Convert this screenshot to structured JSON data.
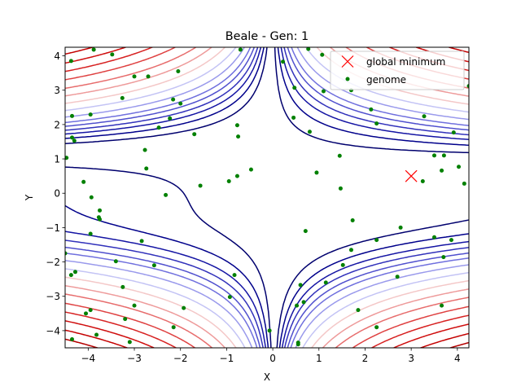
{
  "chart_data": {
    "type": "scatter",
    "title": "Beale - Gen: 1",
    "xlabel": "X",
    "ylabel": "Y",
    "xlim": [
      -4.5,
      4.25
    ],
    "ylim": [
      -4.5,
      4.25
    ],
    "xticks": [
      -4,
      -3,
      -2,
      -1,
      0,
      1,
      2,
      3,
      4
    ],
    "yticks": [
      -4,
      -3,
      -2,
      -1,
      0,
      1,
      2,
      3,
      4
    ],
    "xtick_labels": [
      "−4",
      "−3",
      "−2",
      "−1",
      "0",
      "1",
      "2",
      "3",
      "4"
    ],
    "ytick_labels": [
      "−4",
      "−3",
      "−2",
      "−1",
      "0",
      "1",
      "2",
      "3",
      "4"
    ],
    "grid": false,
    "legend_position": "top-right",
    "contour": {
      "function": "beale",
      "levels": [
        50,
        150,
        300,
        500,
        800,
        1200,
        2000,
        3500,
        6000,
        10000,
        16000,
        26000,
        40000,
        60000,
        90000,
        130000
      ],
      "colors": [
        "#00006e",
        "#00008b",
        "#1515a4",
        "#3232bb",
        "#5050ce",
        "#7070de",
        "#9a9aec",
        "#c4c4f5",
        "#f4c8c8",
        "#ee9b9b",
        "#e76d6d",
        "#df4242",
        "#d72222",
        "#cf0e0e",
        "#c40000",
        "#b40000"
      ]
    },
    "series": [
      {
        "name": "global minimum",
        "marker": "x",
        "color": "#ff0000",
        "points": [
          [
            3,
            0.5
          ]
        ]
      },
      {
        "name": "genome",
        "marker": "dot",
        "color": "#008000",
        "points": [
          [
            -4.47,
            1.03
          ],
          [
            -4.37,
            3.85
          ],
          [
            -4.35,
            2.25
          ],
          [
            -4.35,
            1.62
          ],
          [
            -4.3,
            1.53
          ],
          [
            -4.37,
            -2.38
          ],
          [
            -4.28,
            -2.29
          ],
          [
            -4.5,
            -1.75
          ],
          [
            -4.1,
            0.33
          ],
          [
            -3.95,
            2.29
          ],
          [
            -3.93,
            -0.12
          ],
          [
            -3.95,
            -1.18
          ],
          [
            -3.75,
            -0.5
          ],
          [
            -3.77,
            -0.7
          ],
          [
            -3.75,
            -0.76
          ],
          [
            -4.05,
            -3.5
          ],
          [
            -3.95,
            -3.4
          ],
          [
            -3.82,
            -4.12
          ],
          [
            -4.35,
            -4.25
          ],
          [
            -3.4,
            -1.98
          ],
          [
            -3.25,
            -2.73
          ],
          [
            -3.2,
            -3.66
          ],
          [
            -3.1,
            -4.33
          ],
          [
            -3.0,
            -3.27
          ],
          [
            -3.26,
            2.77
          ],
          [
            -3.0,
            3.4
          ],
          [
            -2.7,
            3.4
          ],
          [
            -2.84,
            -1.39
          ],
          [
            -2.77,
            1.26
          ],
          [
            -2.74,
            0.72
          ],
          [
            -2.57,
            -2.1
          ],
          [
            -2.47,
            1.91
          ],
          [
            -2.32,
            -0.05
          ],
          [
            -2.23,
            2.18
          ],
          [
            -2.16,
            2.73
          ],
          [
            -2.05,
            3.55
          ],
          [
            -2.0,
            2.61
          ],
          [
            -1.93,
            -3.34
          ],
          [
            -2.15,
            -3.9
          ],
          [
            -1.7,
            1.72
          ],
          [
            -1.57,
            0.22
          ],
          [
            -3.88,
            4.18
          ],
          [
            -3.48,
            4.04
          ],
          [
            -0.95,
            0.35
          ],
          [
            -0.93,
            -3.02
          ],
          [
            -0.83,
            -2.38
          ],
          [
            -0.77,
            0.5
          ],
          [
            -0.77,
            1.98
          ],
          [
            -0.75,
            1.65
          ],
          [
            -0.47,
            0.69
          ],
          [
            -0.7,
            4.18
          ],
          [
            0.22,
            3.83
          ],
          [
            0.47,
            3.07
          ],
          [
            0.45,
            2.2
          ],
          [
            0.8,
            1.79
          ],
          [
            0.95,
            0.6
          ],
          [
            0.71,
            -1.1
          ],
          [
            0.52,
            -3.27
          ],
          [
            0.6,
            -2.67
          ],
          [
            0.67,
            -3.17
          ],
          [
            0.55,
            -4.35
          ],
          [
            0.55,
            -4.4
          ],
          [
            -0.07,
            -4.0
          ],
          [
            1.15,
            -2.6
          ],
          [
            1.1,
            2.97
          ],
          [
            0.77,
            4.2
          ],
          [
            1.07,
            4.03
          ],
          [
            1.45,
            1.09
          ],
          [
            1.47,
            0.14
          ],
          [
            1.52,
            -2.09
          ],
          [
            1.7,
            -1.65
          ],
          [
            1.73,
            -0.79
          ],
          [
            1.85,
            -3.4
          ],
          [
            1.7,
            3.0
          ],
          [
            2.13,
            2.44
          ],
          [
            2.25,
            2.03
          ],
          [
            2.25,
            -1.36
          ],
          [
            2.25,
            -3.9
          ],
          [
            2.7,
            -2.43
          ],
          [
            2.77,
            -1.0
          ],
          [
            3.25,
            0.35
          ],
          [
            3.28,
            2.24
          ],
          [
            3.5,
            1.1
          ],
          [
            3.5,
            -1.28
          ],
          [
            3.66,
            0.66
          ],
          [
            3.71,
            1.1
          ],
          [
            3.7,
            -1.86
          ],
          [
            3.66,
            -3.27
          ],
          [
            3.87,
            -1.36
          ],
          [
            3.92,
            1.77
          ],
          [
            4.03,
            0.77
          ],
          [
            4.15,
            0.28
          ],
          [
            4.25,
            3.12
          ]
        ]
      }
    ]
  }
}
